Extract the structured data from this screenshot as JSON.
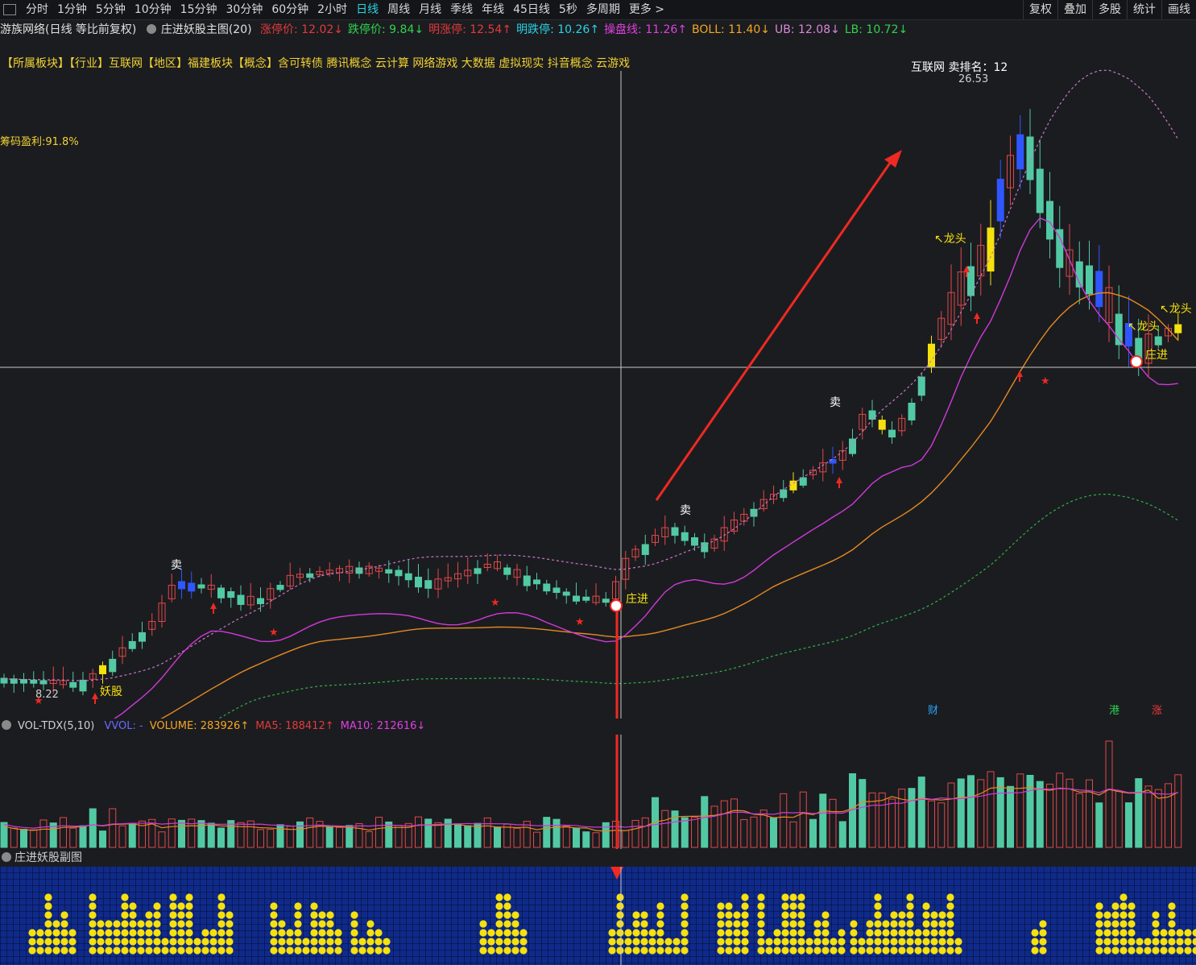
{
  "toolbar": {
    "periods": [
      "分时",
      "1分钟",
      "5分钟",
      "10分钟",
      "15分钟",
      "30分钟",
      "60分钟",
      "2小时",
      "日线",
      "周线",
      "月线",
      "季线",
      "年线",
      "45日线",
      "5秒",
      "多周期",
      "更多 >"
    ],
    "active_period": "日线",
    "right_buttons": [
      "复权",
      "叠加",
      "多股",
      "统计",
      "画线"
    ]
  },
  "info": {
    "stock": "游族网络(日线 等比前复权)",
    "indicator": "庄进妖股主图(20)",
    "fields": [
      {
        "label": "涨停价: 12.02↓",
        "color": "#e23b3b"
      },
      {
        "label": "跌停价: 9.84↓",
        "color": "#2fd34d"
      },
      {
        "label": "明涨停: 12.54↑",
        "color": "#e23b3b"
      },
      {
        "label": "明跌停: 10.26↑",
        "color": "#29d3e6"
      },
      {
        "label": "操盘线: 11.26↑",
        "color": "#e040e0"
      },
      {
        "label": "BOLL: 11.40↓",
        "color": "#f5a623"
      },
      {
        "label": "UB: 12.08↓",
        "color": "#d888d8"
      },
      {
        "label": "LB: 10.72↓",
        "color": "#2fd34d"
      }
    ]
  },
  "concept_line": "【所属板块】【行业】互联网【地区】福建板块【概念】含可转债 腾讯概念 云计算 网络游戏 大数据 虚拟现实 抖音概念 云游戏",
  "profit_label": "筹码盈利:91.8%",
  "annotations": {
    "sell": "卖",
    "dragon": "↖龙头",
    "zhuangjin": "庄进",
    "yaogu": "妖股",
    "rank": "互联网  卖排名：12",
    "high_price": "26.53",
    "low_price": "8.22",
    "tag_cai": "财",
    "tag_gang": "港",
    "tag_zhang": "涨"
  },
  "volume": {
    "name": "VOL-TDX(5,10)",
    "fields": [
      {
        "label": "VVOL: -",
        "color": "#6b6bff"
      },
      {
        "label": "VOLUME: 283926↑",
        "color": "#f5a623"
      },
      {
        "label": "MA5: 188412↑",
        "color": "#e23b3b"
      },
      {
        "label": "MA10: 212616↓",
        "color": "#e040e0"
      }
    ]
  },
  "sub_indicator": "庄进妖股副图",
  "colors": {
    "up": "#e04848",
    "down": "#52c9a3",
    "yellow": "#f5e10e",
    "blue": "#2f57ff",
    "arrow": "#ee2a22",
    "ma_fast": "#d03ad8",
    "ma_slow": "#e58a22"
  }
}
